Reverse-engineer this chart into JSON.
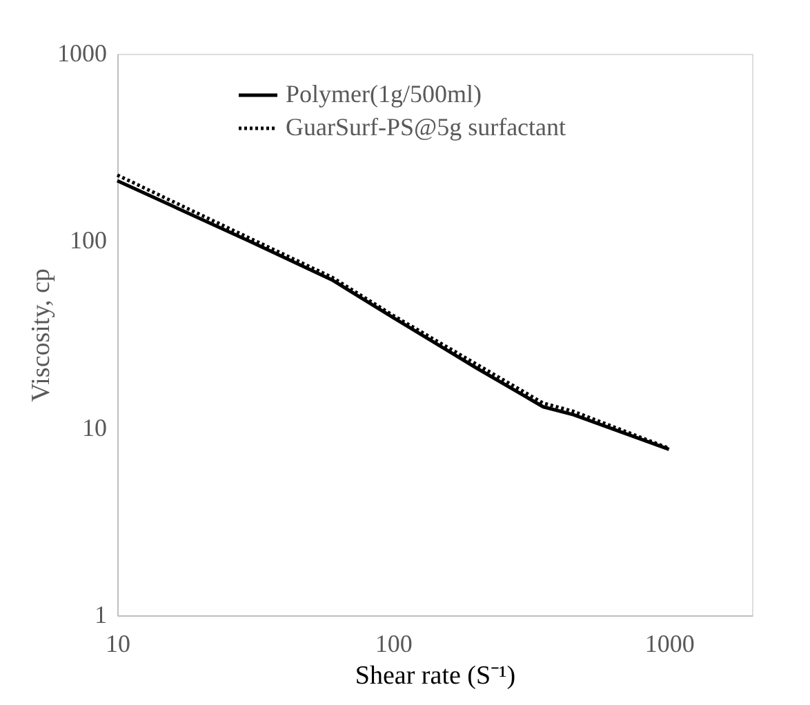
{
  "chart_data": {
    "type": "line",
    "xlabel": "Shear rate (S⁻¹)",
    "ylabel": "Viscosity, cp",
    "log": "xy",
    "xlim": [
      10,
      2000
    ],
    "xticks": [
      10,
      100,
      1000
    ],
    "ylim": [
      1,
      1000
    ],
    "yticks": [
      1,
      10,
      100,
      1000
    ],
    "grid": false,
    "legend": "top",
    "marker": "none",
    "series": [
      {
        "name": "Polymer(1g/500ml)",
        "color": "#000000",
        "line_style": "solid",
        "x": [
          10,
          30,
          60,
          100,
          200,
          350,
          450,
          1000
        ],
        "values": [
          210,
          100,
          62,
          39,
          21,
          13,
          11.8,
          7.7
        ]
      },
      {
        "name": "GuarSurf-PS@5g surfactant",
        "color": "#000000",
        "line_style": "dotted",
        "x": [
          10,
          30,
          60,
          100,
          200,
          350,
          450,
          1000
        ],
        "values": [
          225,
          104,
          64,
          40,
          22,
          13.6,
          12.3,
          7.8
        ]
      }
    ]
  }
}
